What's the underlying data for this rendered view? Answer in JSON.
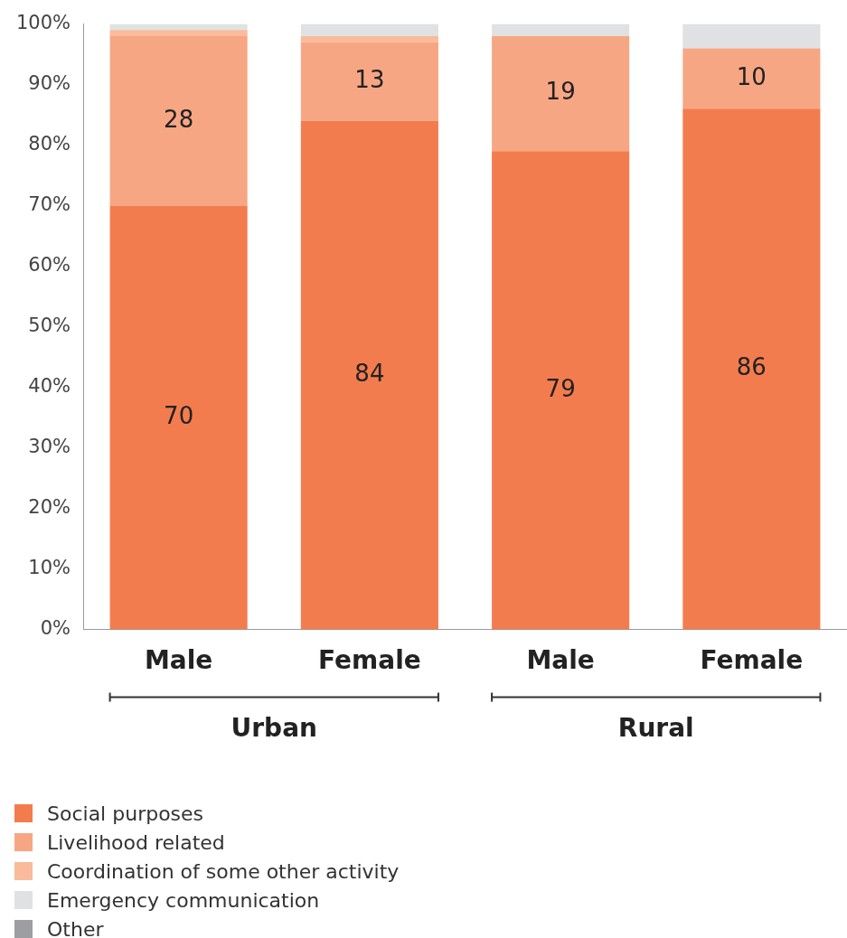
{
  "chart_data": {
    "type": "bar",
    "stacked": true,
    "categories": [
      "Male",
      "Female",
      "Male",
      "Female"
    ],
    "series": [
      {
        "name": "Social purposes",
        "color": "#f37c4f",
        "values": [
          70,
          84,
          79,
          86
        ],
        "value_labels": [
          "70",
          "84",
          "79",
          "86"
        ]
      },
      {
        "name": "Livelihood related",
        "color": "#f7a684",
        "values": [
          28,
          13,
          19,
          10
        ],
        "value_labels": [
          "28",
          "13",
          "19",
          "10"
        ]
      },
      {
        "name": "Coordination of some other activity",
        "color": "#f9bb9b",
        "values": [
          1,
          1,
          0,
          0
        ]
      },
      {
        "name": "Emergency communication",
        "color": "#e0e1e3",
        "values": [
          1,
          2,
          2,
          4
        ]
      },
      {
        "name": "Other",
        "color": "#9d9ea2",
        "values": [
          0,
          0,
          0,
          0
        ]
      }
    ],
    "ylim": [
      0,
      100
    ],
    "yticks": [
      {
        "value": 0,
        "label": "0%"
      },
      {
        "value": 10,
        "label": "10%"
      },
      {
        "value": 20,
        "label": "20%"
      },
      {
        "value": 30,
        "label": "30%"
      },
      {
        "value": 40,
        "label": "40%"
      },
      {
        "value": 50,
        "label": "50%"
      },
      {
        "value": 60,
        "label": "60%"
      },
      {
        "value": 70,
        "label": "70%"
      },
      {
        "value": 80,
        "label": "80%"
      },
      {
        "value": 90,
        "label": "90%"
      },
      {
        "value": 100,
        "label": "100%"
      }
    ],
    "annotations": [
      "Urban",
      "Rural"
    ],
    "grid": false,
    "legend": "bottom left"
  }
}
